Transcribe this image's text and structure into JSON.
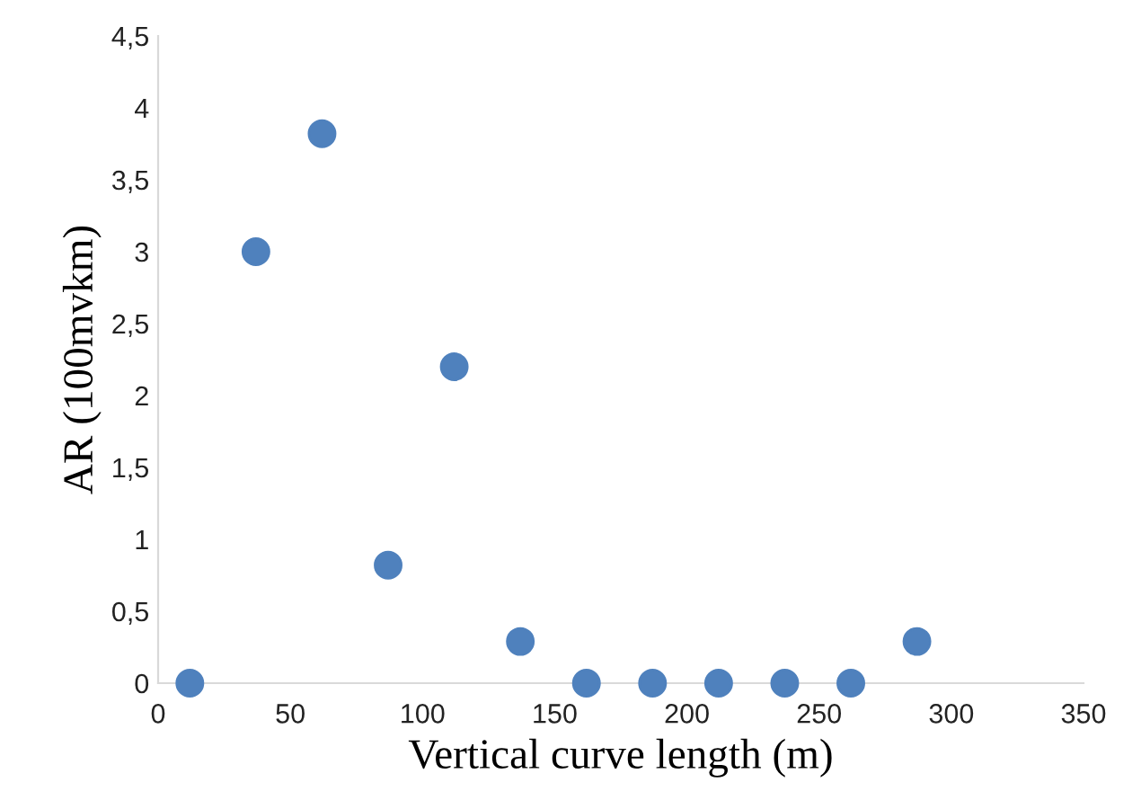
{
  "chart_data": {
    "type": "scatter",
    "xlabel": "Vertical curve length (m)",
    "ylabel": "AR (100mvkm)",
    "x": [
      12,
      37,
      62,
      87,
      112,
      137,
      162,
      187,
      212,
      237,
      262,
      287
    ],
    "series": [
      {
        "color": "#4f81bd",
        "values": [
          0,
          3.0,
          3.82,
          0.82,
          2.2,
          0.29,
          0,
          0,
          0,
          0,
          0,
          0.29
        ]
      }
    ],
    "xlim": [
      0,
      350
    ],
    "xticks": [
      0,
      50,
      100,
      150,
      200,
      250,
      300,
      350
    ],
    "ylim": [
      0,
      4.5
    ],
    "yticks": [
      0,
      {
        "value": 0.5,
        "label": "0,5"
      },
      1,
      {
        "value": 1.5,
        "label": "1,5"
      },
      2,
      {
        "value": 2.5,
        "label": "2,5"
      },
      3,
      {
        "value": 3.5,
        "label": "3,5"
      },
      4,
      {
        "value": 4.5,
        "label": "4,5"
      }
    ],
    "marker": "circle",
    "grid": false,
    "legend": false
  }
}
